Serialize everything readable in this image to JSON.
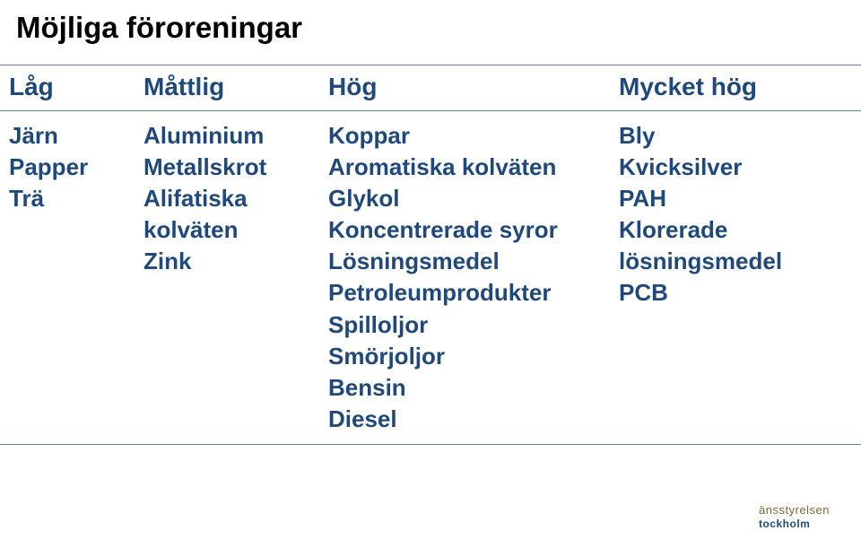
{
  "title": "Möjliga föroreningar",
  "headers": [
    "Låg",
    "Måttlig",
    "Hög",
    "Mycket hög"
  ],
  "columns": {
    "c1": [
      "Järn",
      "Papper",
      "Trä"
    ],
    "c2": [
      "Aluminium",
      "Metallskrot",
      "Alifatiska kolväten",
      "Zink"
    ],
    "c3": [
      "Koppar",
      "Aromatiska kolväten",
      "Glykol",
      "Koncentrerade syror",
      "Lösningsmedel",
      "Petroleumprodukter",
      "Spilloljor",
      "Smörjoljor",
      "Bensin",
      "Diesel"
    ],
    "c4": [
      "Bly",
      "Kvicksilver",
      "PAH",
      "Klorerade lösningsmedel",
      "PCB"
    ]
  },
  "logo": {
    "line1": "änsstyrelsen",
    "line2": "tockholm"
  },
  "colors": {
    "text": "#1f497d",
    "title": "#000000",
    "border": "#5a7fb0",
    "background": "#ffffff"
  },
  "fonts": {
    "title_size": 33,
    "header_size": 28,
    "cell_size": 26
  }
}
